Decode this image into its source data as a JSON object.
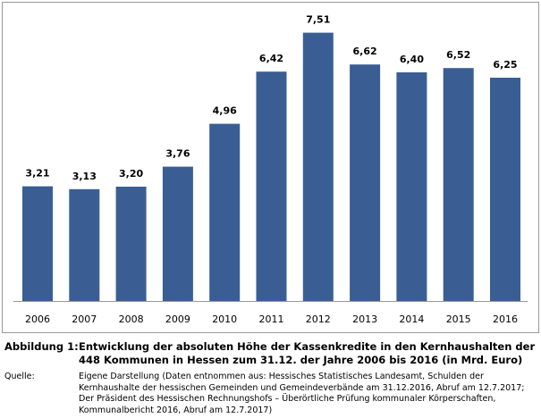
{
  "chart_data": {
    "type": "bar",
    "categories": [
      "2006",
      "2007",
      "2008",
      "2009",
      "2010",
      "2011",
      "2012",
      "2013",
      "2014",
      "2015",
      "2016"
    ],
    "values": [
      3.21,
      3.13,
      3.2,
      3.76,
      4.96,
      6.42,
      7.51,
      6.62,
      6.4,
      6.52,
      6.25
    ],
    "value_labels": [
      "3,21",
      "3,13",
      "3,20",
      "3,76",
      "4,96",
      "6,42",
      "7,51",
      "6,62",
      "6,40",
      "6,52",
      "6,25"
    ],
    "color": "#3a5e94"
  },
  "caption": {
    "label": "Abbildung 1:",
    "text": "Entwicklung der absoluten Höhe der Kassenkredite in den Kernhaushalten der 448 Kommunen in Hessen zum 31.12. der Jahre 2006 bis 2016 (in Mrd. Euro)"
  },
  "source": {
    "label": "Quelle:",
    "text": "Eigene Darstellung (Daten entnommen aus: Hessisches Statistisches Landesamt, Schulden der Kernhaushalte der hessischen Gemeinden und Gemeindeverbände am 31.12.2016, Abruf am 12.7.2017; Der Präsident des Hessischen Rechnungshofs – Überörtliche Prüfung kommunaler Körperschaften, Kommunalbericht 2016, Abruf am 12.7.2017)"
  }
}
